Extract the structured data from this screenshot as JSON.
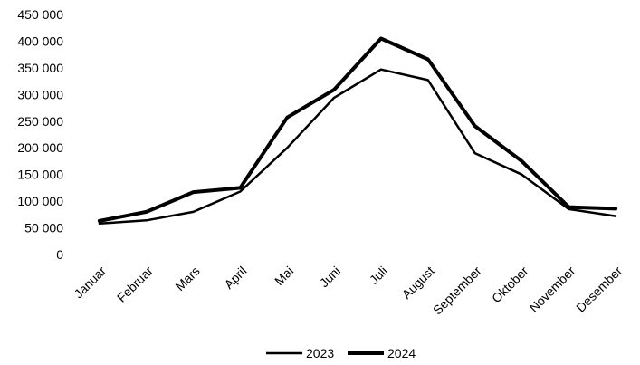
{
  "chart_data": {
    "type": "line",
    "title": "",
    "xlabel": "",
    "ylabel": "",
    "categories": [
      "Januar",
      "Februar",
      "Mars",
      "April",
      "Mai",
      "Juni",
      "Juli",
      "August",
      "September",
      "Oktober",
      "November",
      "Desember"
    ],
    "ylim": [
      0,
      450000
    ],
    "yticks": [
      0,
      50000,
      100000,
      150000,
      200000,
      250000,
      300000,
      350000,
      400000,
      450000
    ],
    "ytick_labels": [
      "0",
      "50 000",
      "100 000",
      "150 000",
      "200 000",
      "250 000",
      "300 000",
      "350 000",
      "400 000",
      "450 000"
    ],
    "grid": false,
    "legend_position": "bottom",
    "series": [
      {
        "name": "2023",
        "color": "#000000",
        "line_style": "thin",
        "values": [
          58000,
          64000,
          80000,
          118000,
          200000,
          294000,
          347000,
          327000,
          190000,
          150000,
          85000,
          72000
        ]
      },
      {
        "name": "2024",
        "color": "#000000",
        "line_style": "thick",
        "values": [
          63000,
          80000,
          117000,
          125000,
          257000,
          309000,
          405000,
          366000,
          241000,
          175000,
          89000,
          86000
        ]
      }
    ]
  }
}
